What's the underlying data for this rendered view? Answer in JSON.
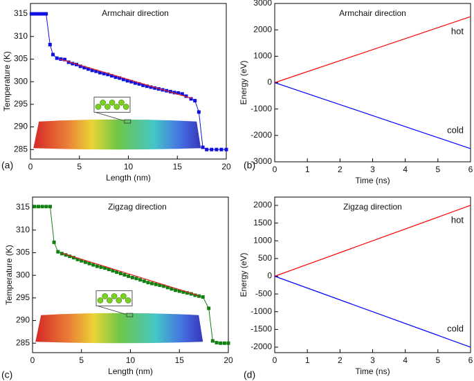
{
  "chart_data": [
    {
      "type": "line",
      "title": "Armchair direction",
      "panel_label": "(a)",
      "x_label": "Length (nm)",
      "y_label": "Temperature (K)",
      "xlim": [
        0,
        20
      ],
      "ylim": [
        282.9,
        317.3
      ],
      "xticks": [
        0,
        5,
        10,
        15,
        20
      ],
      "yticks": [
        285,
        290,
        295,
        300,
        305,
        310,
        315
      ],
      "series": [
        {
          "color": "#1010e0",
          "marker": "square",
          "x": [
            0.1,
            0.4,
            0.7,
            1.0,
            1.3,
            1.6,
            2.0,
            2.3,
            2.7,
            3.1,
            3.5,
            3.9,
            4.3,
            4.7,
            5.1,
            5.5,
            5.9,
            6.3,
            6.7,
            7.1,
            7.5,
            7.9,
            8.3,
            8.7,
            9.1,
            9.5,
            9.9,
            10.3,
            10.7,
            11.1,
            11.5,
            11.9,
            12.3,
            12.7,
            13.1,
            13.5,
            13.9,
            14.3,
            14.7,
            15.1,
            15.5,
            15.9,
            16.4,
            16.8,
            17.2,
            17.6,
            18.0,
            18.5,
            19.0,
            19.5,
            20.0
          ],
          "values": [
            315,
            315,
            315,
            315,
            315,
            315,
            308.2,
            306,
            305.2,
            305,
            304.9,
            304.3,
            304,
            303.8,
            303.4,
            303.1,
            302.8,
            302.5,
            302.3,
            302.0,
            301.8,
            301.6,
            301.3,
            301.0,
            300.8,
            300.5,
            300.2,
            300.0,
            299.7,
            299.5,
            299.2,
            299.0,
            298.8,
            298.6,
            298.4,
            298.2,
            298.0,
            297.8,
            297.6,
            297.5,
            297.3,
            296.8,
            296.2,
            295.8,
            293.3,
            285.5,
            285,
            285,
            285,
            285,
            285
          ]
        },
        {
          "color": "#e02020",
          "x": [
            3,
            16.5
          ],
          "values": [
            305.0,
            296.3
          ]
        }
      ]
    },
    {
      "type": "line",
      "title": "Armchair direction",
      "panel_label": "(b)",
      "x_label": "Time (ns)",
      "y_label": "Energy (eV)",
      "xlim": [
        0,
        6
      ],
      "ylim": [
        -3000,
        3000
      ],
      "xticks": [
        0,
        1,
        2,
        3,
        4,
        5,
        6
      ],
      "yticks": [
        -3000,
        -2000,
        -1000,
        0,
        1000,
        2000,
        3000
      ],
      "series": [
        {
          "name": "hot",
          "color": "#ff0000",
          "x": [
            0,
            6
          ],
          "values": [
            0,
            2500
          ]
        },
        {
          "name": "cold",
          "color": "#0000ff",
          "x": [
            0,
            6
          ],
          "values": [
            0,
            -2500
          ]
        }
      ]
    },
    {
      "type": "line",
      "title": "Zigzag direction",
      "panel_label": "(c)",
      "x_label": "Length (nm)",
      "y_label": "Temperature (K)",
      "xlim": [
        0,
        20
      ],
      "ylim": [
        282.9,
        317.3
      ],
      "xticks": [
        0,
        5,
        10,
        15,
        20
      ],
      "yticks": [
        285,
        290,
        295,
        300,
        305,
        310,
        315
      ],
      "series": [
        {
          "color": "#108010",
          "marker": "square",
          "x": [
            0.2,
            0.6,
            1.0,
            1.4,
            1.8,
            2.2,
            2.6,
            3.0,
            3.4,
            3.8,
            4.2,
            4.6,
            5.0,
            5.4,
            5.8,
            6.2,
            6.6,
            7.0,
            7.4,
            7.8,
            8.2,
            8.6,
            9.0,
            9.4,
            9.8,
            10.2,
            10.6,
            11.0,
            11.4,
            11.8,
            12.2,
            12.6,
            13.0,
            13.4,
            13.8,
            14.2,
            14.6,
            15.0,
            15.4,
            15.8,
            16.2,
            16.6,
            17.0,
            17.4,
            18.0,
            18.4,
            18.8,
            19.2,
            19.6,
            20.0
          ],
          "values": [
            315.2,
            315.2,
            315.2,
            315.2,
            315.2,
            307.3,
            305.2,
            304.8,
            304.5,
            304.2,
            303.9,
            303.5,
            303.2,
            302.9,
            302.6,
            302.3,
            302.0,
            301.8,
            301.6,
            301.3,
            301.0,
            300.7,
            300.4,
            300.1,
            299.8,
            299.5,
            299.3,
            299.0,
            298.7,
            298.4,
            298.2,
            298.0,
            297.8,
            297.6,
            297.3,
            297.0,
            296.7,
            296.5,
            296.3,
            296.1,
            295.9,
            295.6,
            295.4,
            295.2,
            292.7,
            285.5,
            285.1,
            285,
            285,
            285
          ]
        },
        {
          "color": "#e02020",
          "x": [
            3,
            17
          ],
          "values": [
            304.9,
            295.5
          ]
        }
      ]
    },
    {
      "type": "line",
      "title": "Zigzag direction",
      "panel_label": "(d)",
      "x_label": "Time (ns)",
      "y_label": "Energy (eV)",
      "xlim": [
        0,
        6
      ],
      "ylim": [
        -2156,
        2234
      ],
      "xticks": [
        0,
        1,
        2,
        3,
        4,
        5,
        6
      ],
      "yticks": [
        -2000,
        -1500,
        -1000,
        -500,
        0,
        500,
        1000,
        1500,
        2000
      ],
      "series": [
        {
          "name": "hot",
          "color": "#ff0000",
          "x": [
            0,
            6
          ],
          "values": [
            0,
            2000
          ]
        },
        {
          "name": "cold",
          "color": "#0000ff",
          "x": [
            0,
            6
          ],
          "values": [
            0,
            -2000
          ]
        }
      ]
    }
  ]
}
